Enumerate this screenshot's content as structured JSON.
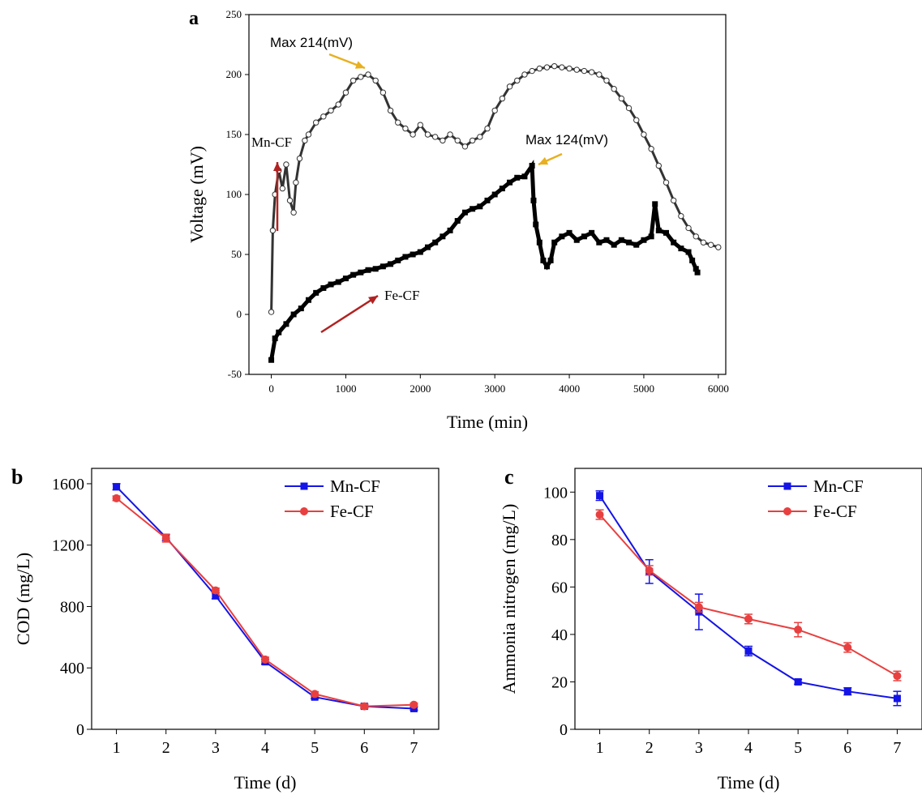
{
  "chart_data": [
    {
      "panel_label": "a",
      "type": "line",
      "xlabel": "Time (min)",
      "ylabel": "Voltage (mV)",
      "xlim": [
        -300,
        6100
      ],
      "ylim": [
        -50,
        250
      ],
      "x_ticks": [
        0,
        1000,
        2000,
        3000,
        4000,
        5000,
        6000
      ],
      "y_ticks": [
        -50,
        0,
        50,
        100,
        150,
        200,
        250
      ],
      "grid": false,
      "series": [
        {
          "name": "Mn-CF",
          "color": "#333333",
          "marker": "open-circle",
          "x": [
            0,
            20,
            50,
            100,
            150,
            200,
            250,
            300,
            330,
            380,
            450,
            500,
            600,
            700,
            800,
            900,
            1000,
            1100,
            1200,
            1300,
            1400,
            1500,
            1600,
            1700,
            1800,
            1900,
            2000,
            2100,
            2200,
            2300,
            2400,
            2500,
            2600,
            2700,
            2800,
            2900,
            3000,
            3100,
            3200,
            3300,
            3400,
            3500,
            3600,
            3700,
            3800,
            3900,
            4000,
            4100,
            4200,
            4300,
            4400,
            4500,
            4600,
            4700,
            4800,
            4900,
            5000,
            5100,
            5200,
            5300,
            5400,
            5500,
            5600,
            5700,
            5800,
            5900,
            6000
          ],
          "values": [
            2,
            70,
            100,
            120,
            105,
            125,
            95,
            85,
            110,
            130,
            145,
            150,
            160,
            165,
            170,
            175,
            185,
            195,
            198,
            200,
            195,
            185,
            170,
            160,
            155,
            150,
            158,
            150,
            148,
            145,
            150,
            145,
            140,
            145,
            148,
            155,
            170,
            180,
            190,
            195,
            200,
            203,
            205,
            206,
            207,
            206,
            205,
            204,
            203,
            202,
            200,
            195,
            188,
            180,
            172,
            162,
            150,
            138,
            124,
            110,
            95,
            82,
            72,
            65,
            60,
            58,
            56
          ]
        },
        {
          "name": "Fe-CF",
          "color": "#000000",
          "marker": "filled-square",
          "x": [
            0,
            50,
            100,
            200,
            300,
            400,
            500,
            600,
            700,
            800,
            900,
            1000,
            1100,
            1200,
            1300,
            1400,
            1500,
            1600,
            1700,
            1800,
            1900,
            2000,
            2100,
            2200,
            2300,
            2400,
            2500,
            2600,
            2700,
            2800,
            2900,
            3000,
            3100,
            3200,
            3300,
            3400,
            3500,
            3520,
            3550,
            3600,
            3650,
            3700,
            3750,
            3800,
            3900,
            4000,
            4100,
            4200,
            4300,
            4400,
            4500,
            4600,
            4700,
            4800,
            4900,
            5000,
            5100,
            5150,
            5200,
            5300,
            5400,
            5500,
            5600,
            5650,
            5700,
            5720
          ],
          "values": [
            -38,
            -20,
            -15,
            -8,
            0,
            5,
            12,
            18,
            22,
            25,
            27,
            30,
            33,
            35,
            37,
            38,
            40,
            42,
            45,
            48,
            50,
            52,
            56,
            60,
            65,
            70,
            78,
            85,
            88,
            90,
            95,
            100,
            105,
            110,
            114,
            115,
            124,
            95,
            75,
            60,
            45,
            40,
            45,
            60,
            65,
            68,
            62,
            65,
            68,
            60,
            62,
            58,
            62,
            60,
            58,
            62,
            65,
            92,
            70,
            68,
            60,
            55,
            52,
            45,
            38,
            35
          ]
        }
      ],
      "annotations": [
        {
          "text": "Max 214(mV)",
          "color": "#e8b020"
        },
        {
          "text": "Max 124(mV)",
          "color": "#e8b020"
        },
        {
          "text": "Mn-CF",
          "color": "#b22222"
        },
        {
          "text": "Fe-CF",
          "color": "#b22222"
        }
      ]
    },
    {
      "panel_label": "b",
      "type": "line",
      "xlabel": "Time (d)",
      "ylabel": "COD (mg/L)",
      "categories": [
        1,
        2,
        3,
        4,
        5,
        6,
        7
      ],
      "xlim": [
        0.5,
        7.5
      ],
      "ylim": [
        0,
        1700
      ],
      "y_ticks": [
        0,
        400,
        800,
        1200,
        1600
      ],
      "grid": false,
      "legend": "top-right",
      "series": [
        {
          "name": "Mn-CF",
          "color": "#1414e6",
          "marker": "square",
          "values": [
            1580,
            1250,
            870,
            440,
            210,
            150,
            135
          ],
          "errors": [
            20,
            20,
            20,
            15,
            10,
            10,
            10
          ]
        },
        {
          "name": "Fe-CF",
          "color": "#e84040",
          "marker": "circle",
          "values": [
            1505,
            1245,
            905,
            455,
            230,
            150,
            160
          ],
          "errors": [
            15,
            25,
            15,
            15,
            15,
            15,
            10
          ]
        }
      ]
    },
    {
      "panel_label": "c",
      "type": "line",
      "xlabel": "Time (d)",
      "ylabel": "Ammonia nitrogen (mg/L)",
      "categories": [
        1,
        2,
        3,
        4,
        5,
        6,
        7
      ],
      "xlim": [
        0.5,
        7.5
      ],
      "ylim": [
        0,
        110
      ],
      "y_ticks": [
        0,
        20,
        40,
        60,
        80,
        100
      ],
      "grid": false,
      "legend": "top-right",
      "series": [
        {
          "name": "Mn-CF",
          "color": "#1414e6",
          "marker": "square",
          "values": [
            98.5,
            66.5,
            49.5,
            33,
            20,
            16,
            13
          ],
          "errors": [
            2,
            5,
            7.5,
            2,
            1,
            1.5,
            3
          ]
        },
        {
          "name": "Fe-CF",
          "color": "#e84040",
          "marker": "circle",
          "values": [
            90.5,
            67,
            51.5,
            46.5,
            42,
            34.5,
            22.5
          ],
          "errors": [
            2,
            2,
            2,
            2,
            3,
            2,
            2
          ]
        }
      ]
    }
  ]
}
